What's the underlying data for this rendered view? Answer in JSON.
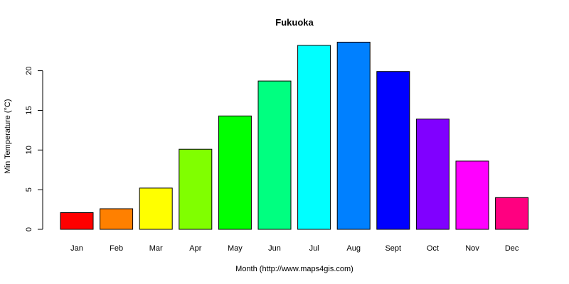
{
  "chart_data": {
    "type": "bar",
    "title": "Fukuoka",
    "xlabel": "Month (http://www.maps4gis.com)",
    "ylabel": "Min Temperature (°C)",
    "categories": [
      "Jan",
      "Feb",
      "Mar",
      "Apr",
      "May",
      "Jun",
      "Jul",
      "Aug",
      "Sept",
      "Oct",
      "Nov",
      "Dec"
    ],
    "values": [
      2.1,
      2.6,
      5.2,
      10.1,
      14.3,
      18.7,
      23.2,
      23.6,
      19.9,
      13.9,
      8.6,
      4.0
    ],
    "colors": [
      "#ff0000",
      "#ff8000",
      "#ffff00",
      "#80ff00",
      "#00ff00",
      "#00ff80",
      "#00ffff",
      "#0080ff",
      "#0000ff",
      "#8000ff",
      "#ff00ff",
      "#ff0080"
    ],
    "yticks": [
      0,
      5,
      10,
      15,
      20
    ],
    "ylim": [
      0,
      23.6
    ],
    "grid": false,
    "legend": "none"
  }
}
